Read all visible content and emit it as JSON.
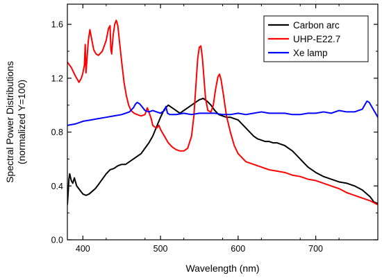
{
  "chart_data": {
    "type": "line",
    "xlabel": "Wavelength (nm)",
    "ylabel_lines": [
      "Spectral Power Distributions",
      "(normalized Y=100)"
    ],
    "xlim": [
      380,
      780
    ],
    "ylim": [
      0.0,
      1.75
    ],
    "x_ticks": [
      400,
      500,
      600,
      700
    ],
    "x_tick_labels": [
      "400",
      "500",
      "600",
      "700"
    ],
    "y_ticks": [
      0.0,
      0.4,
      0.8,
      1.2,
      1.6
    ],
    "y_tick_labels": [
      "0.0",
      "0.4",
      "0.8",
      "1.2",
      "1.6"
    ],
    "grid": false,
    "legend_position": "top-right",
    "series": [
      {
        "name": "Carbon arc",
        "color": "#000000",
        "points": [
          [
            380,
            0.26
          ],
          [
            381,
            0.35
          ],
          [
            382,
            0.45
          ],
          [
            383,
            0.49
          ],
          [
            385,
            0.44
          ],
          [
            387,
            0.42
          ],
          [
            389,
            0.46
          ],
          [
            392,
            0.4
          ],
          [
            396,
            0.37
          ],
          [
            400,
            0.34
          ],
          [
            404,
            0.33
          ],
          [
            408,
            0.34
          ],
          [
            412,
            0.36
          ],
          [
            416,
            0.38
          ],
          [
            420,
            0.41
          ],
          [
            425,
            0.45
          ],
          [
            430,
            0.49
          ],
          [
            435,
            0.52
          ],
          [
            440,
            0.53
          ],
          [
            445,
            0.55
          ],
          [
            450,
            0.56
          ],
          [
            455,
            0.56
          ],
          [
            460,
            0.58
          ],
          [
            465,
            0.6
          ],
          [
            470,
            0.62
          ],
          [
            475,
            0.64
          ],
          [
            480,
            0.68
          ],
          [
            485,
            0.72
          ],
          [
            490,
            0.77
          ],
          [
            495,
            0.84
          ],
          [
            500,
            0.91
          ],
          [
            505,
            0.97
          ],
          [
            510,
            1.0
          ],
          [
            515,
            0.98
          ],
          [
            520,
            0.96
          ],
          [
            525,
            0.94
          ],
          [
            530,
            0.96
          ],
          [
            535,
            0.98
          ],
          [
            540,
            1.0
          ],
          [
            545,
            1.02
          ],
          [
            550,
            1.04
          ],
          [
            555,
            1.05
          ],
          [
            560,
            1.03
          ],
          [
            565,
            1.0
          ],
          [
            570,
            0.96
          ],
          [
            575,
            0.93
          ],
          [
            580,
            0.92
          ],
          [
            585,
            0.91
          ],
          [
            590,
            0.91
          ],
          [
            595,
            0.9
          ],
          [
            600,
            0.89
          ],
          [
            605,
            0.86
          ],
          [
            610,
            0.83
          ],
          [
            615,
            0.8
          ],
          [
            620,
            0.77
          ],
          [
            625,
            0.75
          ],
          [
            630,
            0.74
          ],
          [
            635,
            0.73
          ],
          [
            640,
            0.73
          ],
          [
            645,
            0.72
          ],
          [
            650,
            0.72
          ],
          [
            655,
            0.71
          ],
          [
            660,
            0.7
          ],
          [
            665,
            0.68
          ],
          [
            670,
            0.66
          ],
          [
            675,
            0.63
          ],
          [
            680,
            0.6
          ],
          [
            685,
            0.57
          ],
          [
            690,
            0.54
          ],
          [
            695,
            0.52
          ],
          [
            700,
            0.5
          ],
          [
            710,
            0.47
          ],
          [
            720,
            0.45
          ],
          [
            730,
            0.43
          ],
          [
            740,
            0.42
          ],
          [
            750,
            0.4
          ],
          [
            760,
            0.37
          ],
          [
            770,
            0.32
          ],
          [
            775,
            0.28
          ],
          [
            780,
            0.27
          ]
        ]
      },
      {
        "name": "UHP-E22.7",
        "color": "#ff0000",
        "points": [
          [
            380,
            1.32
          ],
          [
            385,
            1.28
          ],
          [
            390,
            1.22
          ],
          [
            395,
            1.17
          ],
          [
            398,
            1.2
          ],
          [
            400,
            1.24
          ],
          [
            402,
            1.3
          ],
          [
            403,
            1.45
          ],
          [
            404,
            1.24
          ],
          [
            405,
            1.32
          ],
          [
            407,
            1.48
          ],
          [
            409,
            1.56
          ],
          [
            411,
            1.5
          ],
          [
            414,
            1.41
          ],
          [
            417,
            1.38
          ],
          [
            420,
            1.37
          ],
          [
            425,
            1.4
          ],
          [
            430,
            1.48
          ],
          [
            433,
            1.57
          ],
          [
            435,
            1.59
          ],
          [
            436,
            1.42
          ],
          [
            437,
            1.38
          ],
          [
            439,
            1.52
          ],
          [
            441,
            1.6
          ],
          [
            443,
            1.63
          ],
          [
            445,
            1.59
          ],
          [
            447,
            1.48
          ],
          [
            450,
            1.32
          ],
          [
            453,
            1.17
          ],
          [
            456,
            1.07
          ],
          [
            459,
            1.0
          ],
          [
            462,
            0.96
          ],
          [
            466,
            0.94
          ],
          [
            470,
            0.93
          ],
          [
            475,
            0.92
          ],
          [
            480,
            0.93
          ],
          [
            483,
            0.98
          ],
          [
            485,
            0.95
          ],
          [
            488,
            0.9
          ],
          [
            490,
            0.85
          ],
          [
            492,
            0.84
          ],
          [
            495,
            0.83
          ],
          [
            498,
            0.85
          ],
          [
            500,
            0.82
          ],
          [
            505,
            0.77
          ],
          [
            510,
            0.72
          ],
          [
            515,
            0.69
          ],
          [
            520,
            0.67
          ],
          [
            525,
            0.66
          ],
          [
            530,
            0.66
          ],
          [
            535,
            0.68
          ],
          [
            540,
            0.77
          ],
          [
            543,
            0.92
          ],
          [
            546,
            1.18
          ],
          [
            548,
            1.35
          ],
          [
            550,
            1.43
          ],
          [
            552,
            1.44
          ],
          [
            554,
            1.35
          ],
          [
            556,
            1.2
          ],
          [
            558,
            1.05
          ],
          [
            561,
            0.96
          ],
          [
            565,
            0.95
          ],
          [
            568,
            1.0
          ],
          [
            571,
            1.12
          ],
          [
            574,
            1.21
          ],
          [
            576,
            1.23
          ],
          [
            578,
            1.19
          ],
          [
            581,
            1.08
          ],
          [
            585,
            0.92
          ],
          [
            590,
            0.8
          ],
          [
            595,
            0.7
          ],
          [
            600,
            0.64
          ],
          [
            610,
            0.58
          ],
          [
            620,
            0.56
          ],
          [
            630,
            0.54
          ],
          [
            640,
            0.52
          ],
          [
            650,
            0.51
          ],
          [
            660,
            0.5
          ],
          [
            670,
            0.48
          ],
          [
            680,
            0.47
          ],
          [
            690,
            0.45
          ],
          [
            700,
            0.44
          ],
          [
            710,
            0.42
          ],
          [
            720,
            0.4
          ],
          [
            730,
            0.38
          ],
          [
            740,
            0.35
          ],
          [
            750,
            0.33
          ],
          [
            760,
            0.31
          ],
          [
            770,
            0.29
          ],
          [
            780,
            0.26
          ]
        ]
      },
      {
        "name": "Xe lamp",
        "color": "#0000ff",
        "points": [
          [
            380,
            0.85
          ],
          [
            390,
            0.86
          ],
          [
            400,
            0.88
          ],
          [
            410,
            0.89
          ],
          [
            420,
            0.9
          ],
          [
            430,
            0.91
          ],
          [
            440,
            0.92
          ],
          [
            450,
            0.93
          ],
          [
            455,
            0.94
          ],
          [
            460,
            0.95
          ],
          [
            465,
            0.98
          ],
          [
            468,
            1.01
          ],
          [
            470,
            1.02
          ],
          [
            473,
            1.01
          ],
          [
            476,
            0.99
          ],
          [
            480,
            0.96
          ],
          [
            485,
            0.95
          ],
          [
            490,
            0.96
          ],
          [
            495,
            0.95
          ],
          [
            500,
            0.94
          ],
          [
            505,
            0.96
          ],
          [
            507,
            0.99
          ],
          [
            509,
            0.94
          ],
          [
            512,
            0.93
          ],
          [
            520,
            0.93
          ],
          [
            530,
            0.94
          ],
          [
            540,
            0.93
          ],
          [
            550,
            0.94
          ],
          [
            560,
            0.94
          ],
          [
            570,
            0.94
          ],
          [
            580,
            0.93
          ],
          [
            590,
            0.93
          ],
          [
            600,
            0.94
          ],
          [
            610,
            0.93
          ],
          [
            620,
            0.94
          ],
          [
            630,
            0.95
          ],
          [
            640,
            0.94
          ],
          [
            650,
            0.94
          ],
          [
            660,
            0.94
          ],
          [
            670,
            0.93
          ],
          [
            680,
            0.93
          ],
          [
            690,
            0.94
          ],
          [
            700,
            0.94
          ],
          [
            710,
            0.95
          ],
          [
            720,
            0.94
          ],
          [
            730,
            0.96
          ],
          [
            740,
            0.95
          ],
          [
            750,
            0.95
          ],
          [
            755,
            0.96
          ],
          [
            760,
            0.97
          ],
          [
            763,
            1.0
          ],
          [
            766,
            1.03
          ],
          [
            769,
            1.02
          ],
          [
            772,
            0.99
          ],
          [
            775,
            0.96
          ],
          [
            778,
            0.93
          ],
          [
            780,
            0.91
          ]
        ]
      }
    ]
  }
}
